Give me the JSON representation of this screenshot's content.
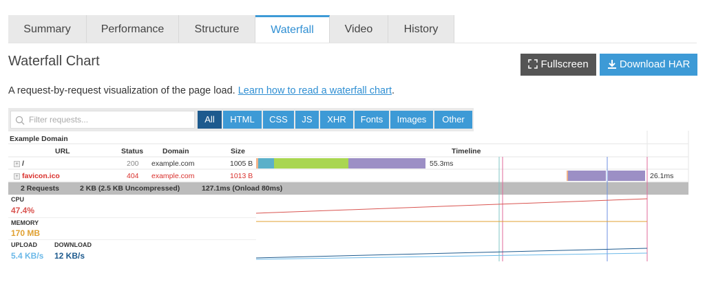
{
  "tabs": [
    "Summary",
    "Performance",
    "Structure",
    "Waterfall",
    "Video",
    "History"
  ],
  "header": {
    "title": "Waterfall Chart",
    "buttons": [
      "Fullscreen",
      "Download HAR"
    ]
  },
  "description": {
    "text": "A request-by-request visualization of the page load.",
    "link": "Learn how to read a waterfall chart",
    "end": "."
  },
  "filter": {
    "placeholder": "Filter requests...",
    "buttons": [
      "All",
      "HTML",
      "CSS",
      "JS",
      "XHR",
      "Fonts",
      "Images",
      "Other"
    ]
  },
  "table": {
    "page": "Example Domain",
    "columns": [
      "URL",
      "Status",
      "Domain",
      "Size",
      "Timeline"
    ],
    "rows": [
      [
        "/",
        "200",
        "example.com",
        "1005 B",
        "55.3ms"
      ],
      [
        "favicon.ico",
        "404",
        "example.com",
        "1013 B",
        "26.1ms"
      ]
    ],
    "summary": [
      "2 Requests",
      "2 KB (2.5 KB Uncompressed)",
      "127.1ms (Onload 80ms)"
    ]
  },
  "metrics": [
    {
      "label": "CPU",
      "value": "47.4%"
    },
    {
      "label": "MEMORY",
      "value": "170 MB"
    },
    {
      "label": "UPLOAD",
      "value": "5.4 KB/s"
    },
    {
      "label": "DOWNLOAD",
      "value": "12 KB/s"
    }
  ]
}
